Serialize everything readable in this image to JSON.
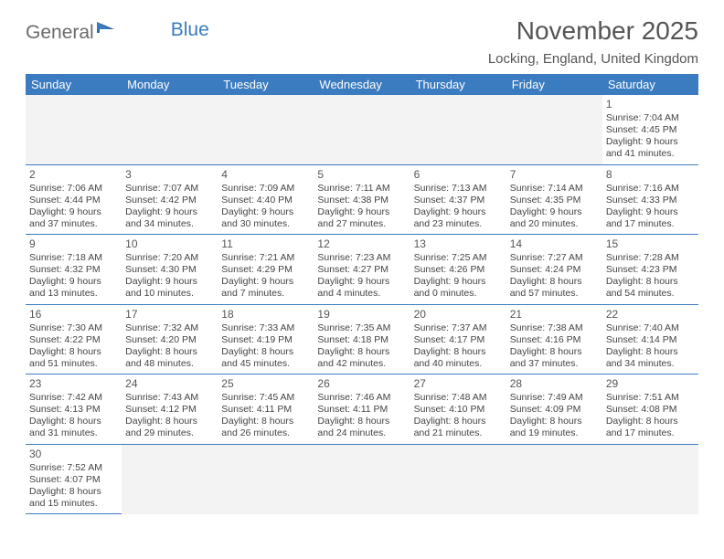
{
  "logo": {
    "text1": "General",
    "text2": "Blue"
  },
  "title": "November 2025",
  "location": "Locking, England, United Kingdom",
  "colors": {
    "header_bg": "#3b7bbf",
    "header_text": "#ffffff",
    "border": "#3b7bbf",
    "empty_bg": "#f3f3f3",
    "text": "#444444",
    "title_color": "#555555"
  },
  "day_headers": [
    "Sunday",
    "Monday",
    "Tuesday",
    "Wednesday",
    "Thursday",
    "Friday",
    "Saturday"
  ],
  "weeks": [
    [
      null,
      null,
      null,
      null,
      null,
      null,
      {
        "n": "1",
        "sunrise": "Sunrise: 7:04 AM",
        "sunset": "Sunset: 4:45 PM",
        "daylight": "Daylight: 9 hours and 41 minutes."
      }
    ],
    [
      {
        "n": "2",
        "sunrise": "Sunrise: 7:06 AM",
        "sunset": "Sunset: 4:44 PM",
        "daylight": "Daylight: 9 hours and 37 minutes."
      },
      {
        "n": "3",
        "sunrise": "Sunrise: 7:07 AM",
        "sunset": "Sunset: 4:42 PM",
        "daylight": "Daylight: 9 hours and 34 minutes."
      },
      {
        "n": "4",
        "sunrise": "Sunrise: 7:09 AM",
        "sunset": "Sunset: 4:40 PM",
        "daylight": "Daylight: 9 hours and 30 minutes."
      },
      {
        "n": "5",
        "sunrise": "Sunrise: 7:11 AM",
        "sunset": "Sunset: 4:38 PM",
        "daylight": "Daylight: 9 hours and 27 minutes."
      },
      {
        "n": "6",
        "sunrise": "Sunrise: 7:13 AM",
        "sunset": "Sunset: 4:37 PM",
        "daylight": "Daylight: 9 hours and 23 minutes."
      },
      {
        "n": "7",
        "sunrise": "Sunrise: 7:14 AM",
        "sunset": "Sunset: 4:35 PM",
        "daylight": "Daylight: 9 hours and 20 minutes."
      },
      {
        "n": "8",
        "sunrise": "Sunrise: 7:16 AM",
        "sunset": "Sunset: 4:33 PM",
        "daylight": "Daylight: 9 hours and 17 minutes."
      }
    ],
    [
      {
        "n": "9",
        "sunrise": "Sunrise: 7:18 AM",
        "sunset": "Sunset: 4:32 PM",
        "daylight": "Daylight: 9 hours and 13 minutes."
      },
      {
        "n": "10",
        "sunrise": "Sunrise: 7:20 AM",
        "sunset": "Sunset: 4:30 PM",
        "daylight": "Daylight: 9 hours and 10 minutes."
      },
      {
        "n": "11",
        "sunrise": "Sunrise: 7:21 AM",
        "sunset": "Sunset: 4:29 PM",
        "daylight": "Daylight: 9 hours and 7 minutes."
      },
      {
        "n": "12",
        "sunrise": "Sunrise: 7:23 AM",
        "sunset": "Sunset: 4:27 PM",
        "daylight": "Daylight: 9 hours and 4 minutes."
      },
      {
        "n": "13",
        "sunrise": "Sunrise: 7:25 AM",
        "sunset": "Sunset: 4:26 PM",
        "daylight": "Daylight: 9 hours and 0 minutes."
      },
      {
        "n": "14",
        "sunrise": "Sunrise: 7:27 AM",
        "sunset": "Sunset: 4:24 PM",
        "daylight": "Daylight: 8 hours and 57 minutes."
      },
      {
        "n": "15",
        "sunrise": "Sunrise: 7:28 AM",
        "sunset": "Sunset: 4:23 PM",
        "daylight": "Daylight: 8 hours and 54 minutes."
      }
    ],
    [
      {
        "n": "16",
        "sunrise": "Sunrise: 7:30 AM",
        "sunset": "Sunset: 4:22 PM",
        "daylight": "Daylight: 8 hours and 51 minutes."
      },
      {
        "n": "17",
        "sunrise": "Sunrise: 7:32 AM",
        "sunset": "Sunset: 4:20 PM",
        "daylight": "Daylight: 8 hours and 48 minutes."
      },
      {
        "n": "18",
        "sunrise": "Sunrise: 7:33 AM",
        "sunset": "Sunset: 4:19 PM",
        "daylight": "Daylight: 8 hours and 45 minutes."
      },
      {
        "n": "19",
        "sunrise": "Sunrise: 7:35 AM",
        "sunset": "Sunset: 4:18 PM",
        "daylight": "Daylight: 8 hours and 42 minutes."
      },
      {
        "n": "20",
        "sunrise": "Sunrise: 7:37 AM",
        "sunset": "Sunset: 4:17 PM",
        "daylight": "Daylight: 8 hours and 40 minutes."
      },
      {
        "n": "21",
        "sunrise": "Sunrise: 7:38 AM",
        "sunset": "Sunset: 4:16 PM",
        "daylight": "Daylight: 8 hours and 37 minutes."
      },
      {
        "n": "22",
        "sunrise": "Sunrise: 7:40 AM",
        "sunset": "Sunset: 4:14 PM",
        "daylight": "Daylight: 8 hours and 34 minutes."
      }
    ],
    [
      {
        "n": "23",
        "sunrise": "Sunrise: 7:42 AM",
        "sunset": "Sunset: 4:13 PM",
        "daylight": "Daylight: 8 hours and 31 minutes."
      },
      {
        "n": "24",
        "sunrise": "Sunrise: 7:43 AM",
        "sunset": "Sunset: 4:12 PM",
        "daylight": "Daylight: 8 hours and 29 minutes."
      },
      {
        "n": "25",
        "sunrise": "Sunrise: 7:45 AM",
        "sunset": "Sunset: 4:11 PM",
        "daylight": "Daylight: 8 hours and 26 minutes."
      },
      {
        "n": "26",
        "sunrise": "Sunrise: 7:46 AM",
        "sunset": "Sunset: 4:11 PM",
        "daylight": "Daylight: 8 hours and 24 minutes."
      },
      {
        "n": "27",
        "sunrise": "Sunrise: 7:48 AM",
        "sunset": "Sunset: 4:10 PM",
        "daylight": "Daylight: 8 hours and 21 minutes."
      },
      {
        "n": "28",
        "sunrise": "Sunrise: 7:49 AM",
        "sunset": "Sunset: 4:09 PM",
        "daylight": "Daylight: 8 hours and 19 minutes."
      },
      {
        "n": "29",
        "sunrise": "Sunrise: 7:51 AM",
        "sunset": "Sunset: 4:08 PM",
        "daylight": "Daylight: 8 hours and 17 minutes."
      }
    ],
    [
      {
        "n": "30",
        "sunrise": "Sunrise: 7:52 AM",
        "sunset": "Sunset: 4:07 PM",
        "daylight": "Daylight: 8 hours and 15 minutes."
      },
      null,
      null,
      null,
      null,
      null,
      null
    ]
  ]
}
